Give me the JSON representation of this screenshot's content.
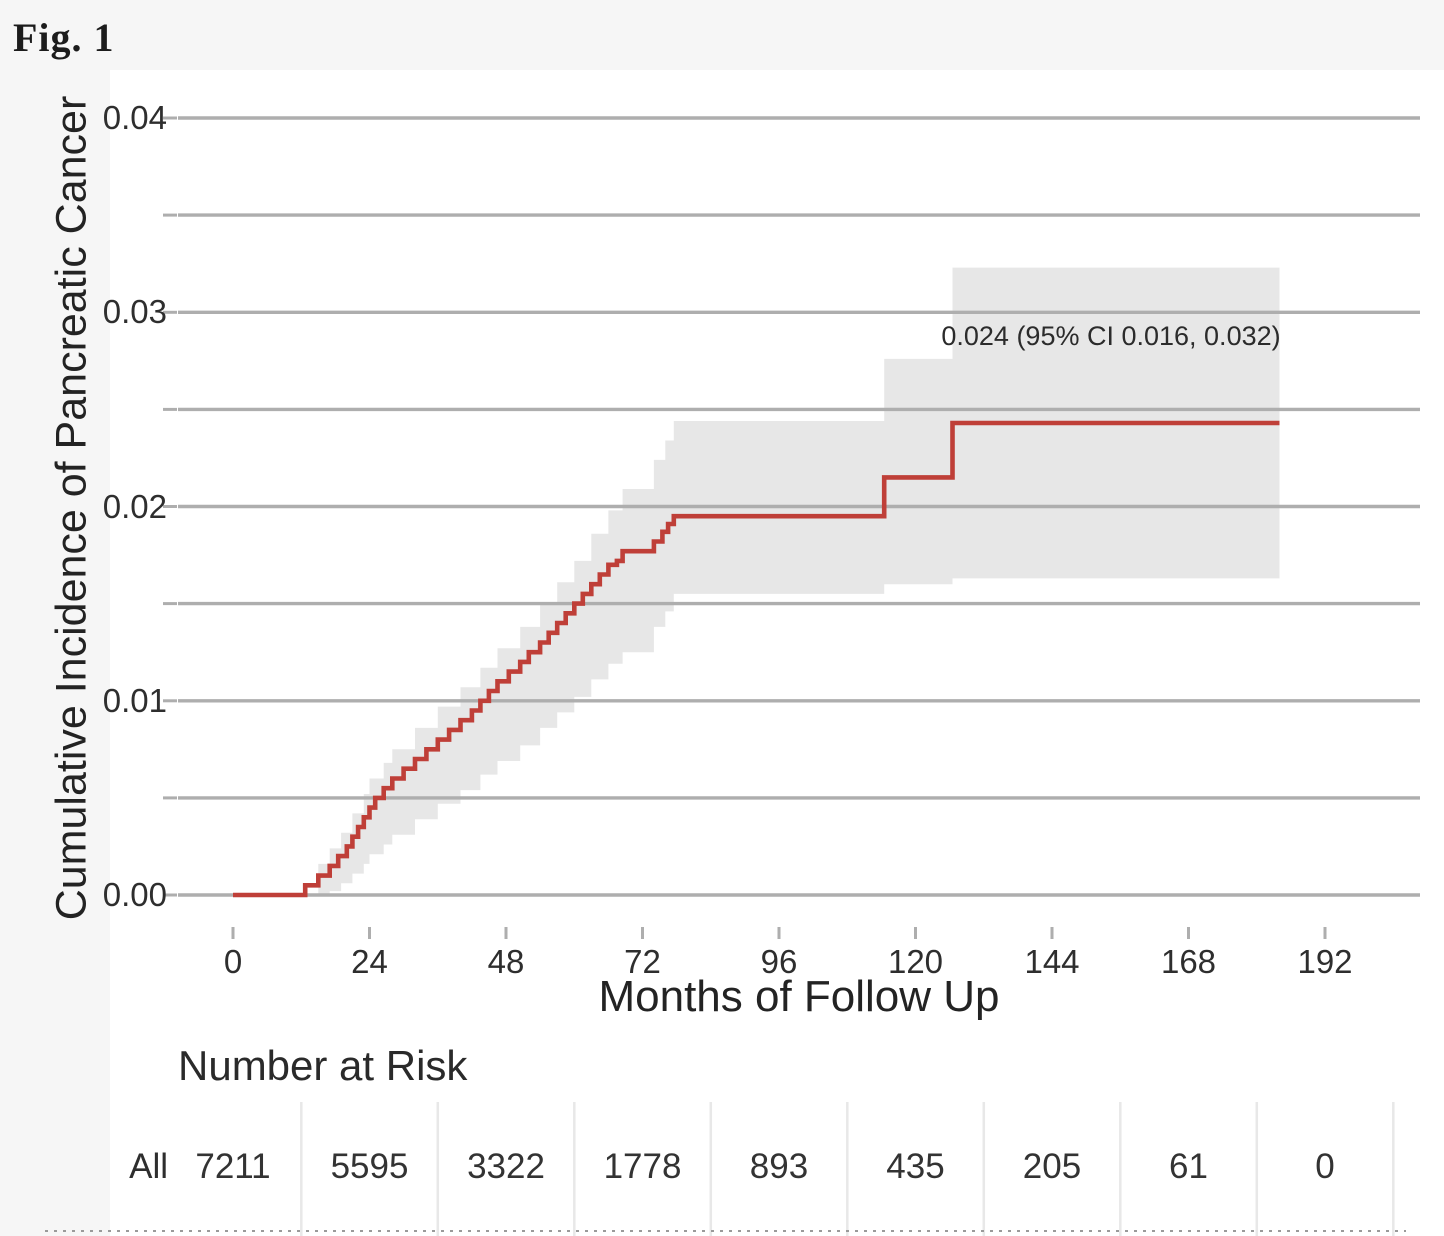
{
  "figure": {
    "label": "Fig. 1"
  },
  "chart_data": {
    "type": "line",
    "subtype": "step-function-cumulative-incidence-with-95ci-band",
    "title": "",
    "xlabel": "Months of Follow Up",
    "ylabel": "Cumulative Incidence of Pancreatic Cancer",
    "xlim": [
      0,
      192
    ],
    "ylim": [
      0,
      0.04
    ],
    "grid": true,
    "legend_position": "none",
    "xticks": [
      0,
      24,
      48,
      72,
      96,
      120,
      144,
      168,
      192
    ],
    "ytick_values": [
      0,
      0.01,
      0.02,
      0.03,
      0.04
    ],
    "ytick_labels": [
      "0.00",
      "0.01",
      "0.02",
      "0.03",
      "0.04"
    ],
    "ygrid_step": 0.005,
    "annotation": {
      "text": "0.024 (95% CI 0.016, 0.032)",
      "x_month": 130,
      "y_value": 0.029
    },
    "final_estimate": {
      "value": 0.024,
      "ci_lower": 0.016,
      "ci_upper": 0.032
    },
    "colors": {
      "line": "#bf3f38",
      "band": "#e7e7e7",
      "grid": "#aeaeae",
      "table_separator": "#e8e8e8",
      "dotted_rule": "#9a9a9a"
    },
    "t_end": 184,
    "series": [
      {
        "name": "All",
        "steps": [
          [
            0,
            0
          ],
          [
            12.7,
            0.0005
          ],
          [
            15,
            0.001
          ],
          [
            17,
            0.0015
          ],
          [
            18.5,
            0.002
          ],
          [
            20,
            0.0025
          ],
          [
            21,
            0.003
          ],
          [
            22,
            0.0035
          ],
          [
            23,
            0.004
          ],
          [
            24,
            0.0045
          ],
          [
            25,
            0.005
          ],
          [
            26.5,
            0.0055
          ],
          [
            28,
            0.006
          ],
          [
            30,
            0.0065
          ],
          [
            32,
            0.007
          ],
          [
            34,
            0.0075
          ],
          [
            36,
            0.008
          ],
          [
            38,
            0.0085
          ],
          [
            40,
            0.009
          ],
          [
            42,
            0.0095
          ],
          [
            43.5,
            0.01
          ],
          [
            45,
            0.0105
          ],
          [
            46.5,
            0.011
          ],
          [
            48.5,
            0.0115
          ],
          [
            50.5,
            0.012
          ],
          [
            52,
            0.0125
          ],
          [
            54,
            0.013
          ],
          [
            55.5,
            0.0135
          ],
          [
            57,
            0.014
          ],
          [
            58.5,
            0.0145
          ],
          [
            60,
            0.015
          ],
          [
            61.5,
            0.0155
          ],
          [
            63,
            0.016
          ],
          [
            64.5,
            0.0165
          ],
          [
            66,
            0.017
          ],
          [
            67.5,
            0.0172
          ],
          [
            68.5,
            0.0177
          ],
          [
            74,
            0.0182
          ],
          [
            75.5,
            0.0187
          ],
          [
            76.5,
            0.0191
          ],
          [
            77.5,
            0.0195
          ],
          [
            114.5,
            0.0215
          ],
          [
            126.5,
            0.0243
          ]
        ]
      }
    ],
    "ci_band": [
      [
        15,
        0.0,
        0.0016
      ],
      [
        17,
        0.0002,
        0.0024
      ],
      [
        19,
        0.0006,
        0.0032
      ],
      [
        21,
        0.0011,
        0.0042
      ],
      [
        23,
        0.0016,
        0.0052
      ],
      [
        24,
        0.0021,
        0.006
      ],
      [
        26.5,
        0.0026,
        0.0068
      ],
      [
        28,
        0.0031,
        0.0075
      ],
      [
        32,
        0.0039,
        0.0086
      ],
      [
        36,
        0.0047,
        0.0097
      ],
      [
        40,
        0.0054,
        0.0107
      ],
      [
        43.5,
        0.0062,
        0.0117
      ],
      [
        46.5,
        0.0069,
        0.0127
      ],
      [
        50.5,
        0.0077,
        0.0138
      ],
      [
        54,
        0.0086,
        0.015
      ],
      [
        57,
        0.0094,
        0.0161
      ],
      [
        60,
        0.0102,
        0.0172
      ],
      [
        63,
        0.0111,
        0.0186
      ],
      [
        66,
        0.0119,
        0.0198
      ],
      [
        68.5,
        0.0125,
        0.0209
      ],
      [
        74,
        0.0138,
        0.0224
      ],
      [
        76,
        0.0146,
        0.0234
      ],
      [
        77.5,
        0.0155,
        0.0244
      ],
      [
        114.5,
        0.016,
        0.0276
      ],
      [
        126.5,
        0.0163,
        0.0323
      ]
    ]
  },
  "risk_table": {
    "title": "Number at Risk",
    "row_label": "All",
    "times": [
      0,
      24,
      48,
      72,
      96,
      120,
      144,
      168,
      192
    ],
    "values": [
      "7211",
      "5595",
      "3322",
      "1778",
      "893",
      "435",
      "205",
      "61",
      "0"
    ]
  }
}
